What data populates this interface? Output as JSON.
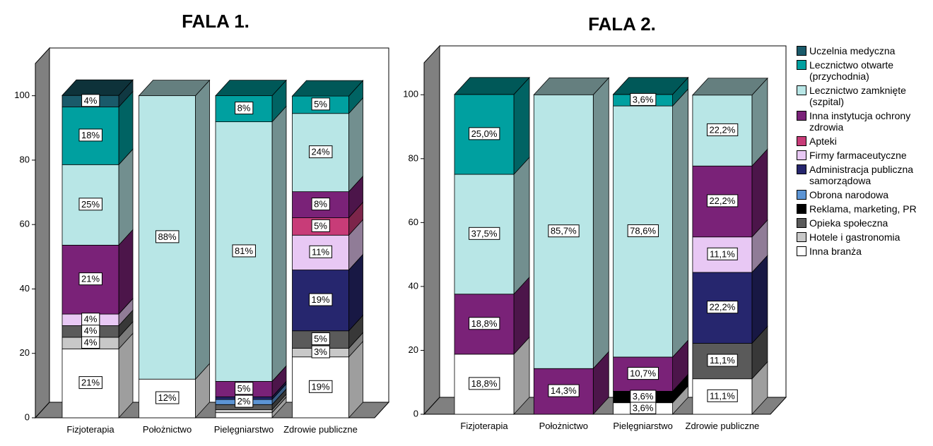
{
  "chart_data": [
    {
      "type": "bar3d_stacked",
      "title": "FALA 1.",
      "categories": [
        "Fizjoterapia",
        "Położnictwo",
        "Pielęgniarstwo",
        "Zdrowie publiczne"
      ],
      "ylim": [
        0,
        110
      ],
      "yticks": [
        0,
        20,
        40,
        60,
        80,
        100
      ],
      "series": [
        {
          "color": "#1a5a6a",
          "values": [
            3.6,
            null,
            null,
            null
          ],
          "value_labels": [
            "4%",
            null,
            null,
            null
          ]
        },
        {
          "color": "#00a0a0",
          "values": [
            17.9,
            null,
            8.1,
            5.4
          ],
          "value_labels": [
            "18%",
            null,
            "8%",
            "5%"
          ]
        },
        {
          "color": "#b8e6e6",
          "values": [
            25.0,
            88.0,
            80.6,
            24.3
          ],
          "value_labels": [
            "25%",
            "88%",
            "81%",
            "24%"
          ]
        },
        {
          "color": "#7a2278",
          "values": [
            21.4,
            null,
            4.8,
            8.1
          ],
          "value_labels": [
            "21%",
            null,
            "5%",
            "8%"
          ]
        },
        {
          "color": "#c83c78",
          "values": [
            null,
            null,
            null,
            5.4
          ],
          "value_labels": [
            null,
            null,
            null,
            "5%"
          ]
        },
        {
          "color": "#e8c8f4",
          "values": [
            3.6,
            null,
            null,
            10.8
          ],
          "value_labels": [
            "4%",
            null,
            null,
            "11%"
          ]
        },
        {
          "color": "#26266e",
          "values": [
            null,
            null,
            0.8,
            18.9
          ],
          "value_labels": [
            null,
            null,
            null,
            "19%"
          ]
        },
        {
          "color": "#5c94d4",
          "values": [
            null,
            null,
            1.6,
            null
          ],
          "value_labels": [
            null,
            null,
            "2%",
            null
          ]
        },
        {
          "color": "#000000",
          "values": [
            null,
            null,
            null,
            null
          ],
          "value_labels": [
            null,
            null,
            null,
            null
          ]
        },
        {
          "color": "#5a5a5a",
          "values": [
            3.6,
            null,
            1.6,
            5.4
          ],
          "value_labels": [
            "4%",
            null,
            null,
            "5%"
          ]
        },
        {
          "color": "#c8c8c8",
          "values": [
            3.6,
            null,
            0.9,
            2.7
          ],
          "value_labels": [
            "4%",
            null,
            null,
            "3%"
          ]
        },
        {
          "color": "#ffffff",
          "values": [
            21.4,
            12.0,
            1.6,
            18.9
          ],
          "value_labels": [
            "21%",
            "12%",
            null,
            "19%"
          ]
        }
      ]
    },
    {
      "type": "bar3d_stacked",
      "title": "FALA 2.",
      "categories": [
        "Fizjoterapia",
        "Położnictwo",
        "Pielęgniarstwo",
        "Zdrowie publiczne"
      ],
      "ylim": [
        0,
        110
      ],
      "yticks": [
        0,
        20,
        40,
        60,
        80,
        100
      ],
      "legend": "right",
      "series": [
        {
          "name": "Uczelnia medyczna",
          "color": "#1a5a6a",
          "values": [
            null,
            null,
            null,
            null
          ],
          "value_labels": [
            null,
            null,
            null,
            null
          ]
        },
        {
          "name": "Lecznictwo otwarte (przychodnia)",
          "color": "#00a0a0",
          "values": [
            25.0,
            null,
            3.6,
            null
          ],
          "value_labels": [
            "25,0%",
            null,
            "3,6%",
            null
          ]
        },
        {
          "name": "Lecznictwo zamknięte (szpital)",
          "color": "#b8e6e6",
          "values": [
            37.5,
            85.7,
            78.6,
            22.2
          ],
          "value_labels": [
            "37,5%",
            "85,7%",
            "78,6%",
            "22,2%"
          ]
        },
        {
          "name": "Inna instytucja ochrony zdrowia",
          "color": "#7a2278",
          "values": [
            18.8,
            14.3,
            10.7,
            22.2
          ],
          "value_labels": [
            "18,8%",
            "14,3%",
            "10,7%",
            "22,2%"
          ]
        },
        {
          "name": "Apteki",
          "color": "#c83c78",
          "values": [
            null,
            null,
            null,
            null
          ],
          "value_labels": [
            null,
            null,
            null,
            null
          ]
        },
        {
          "name": "Firmy farmaceutyczne",
          "color": "#e8c8f4",
          "values": [
            null,
            null,
            null,
            11.1
          ],
          "value_labels": [
            null,
            null,
            null,
            "11,1%"
          ]
        },
        {
          "name": "Administracja publiczna samorządowa",
          "color": "#26266e",
          "values": [
            null,
            null,
            null,
            22.2
          ],
          "value_labels": [
            null,
            null,
            null,
            "22,2%"
          ]
        },
        {
          "name": "Obrona narodowa",
          "color": "#5c94d4",
          "values": [
            null,
            null,
            null,
            null
          ],
          "value_labels": [
            null,
            null,
            null,
            null
          ]
        },
        {
          "name": "Reklama, marketing, PR",
          "color": "#000000",
          "values": [
            null,
            null,
            3.6,
            null
          ],
          "value_labels": [
            null,
            null,
            "3,6%",
            null
          ]
        },
        {
          "name": "Opieka społeczna",
          "color": "#5a5a5a",
          "values": [
            null,
            null,
            null,
            11.1
          ],
          "value_labels": [
            null,
            null,
            null,
            "11,1%"
          ]
        },
        {
          "name": "Hotele i gastronomia",
          "color": "#c8c8c8",
          "values": [
            null,
            null,
            null,
            null
          ],
          "value_labels": [
            null,
            null,
            null,
            null
          ]
        },
        {
          "name": "Inna branża",
          "color": "#ffffff",
          "values": [
            18.8,
            null,
            3.6,
            11.1
          ],
          "value_labels": [
            "18,8%",
            null,
            "3,6%",
            "11,1%"
          ]
        }
      ]
    }
  ]
}
